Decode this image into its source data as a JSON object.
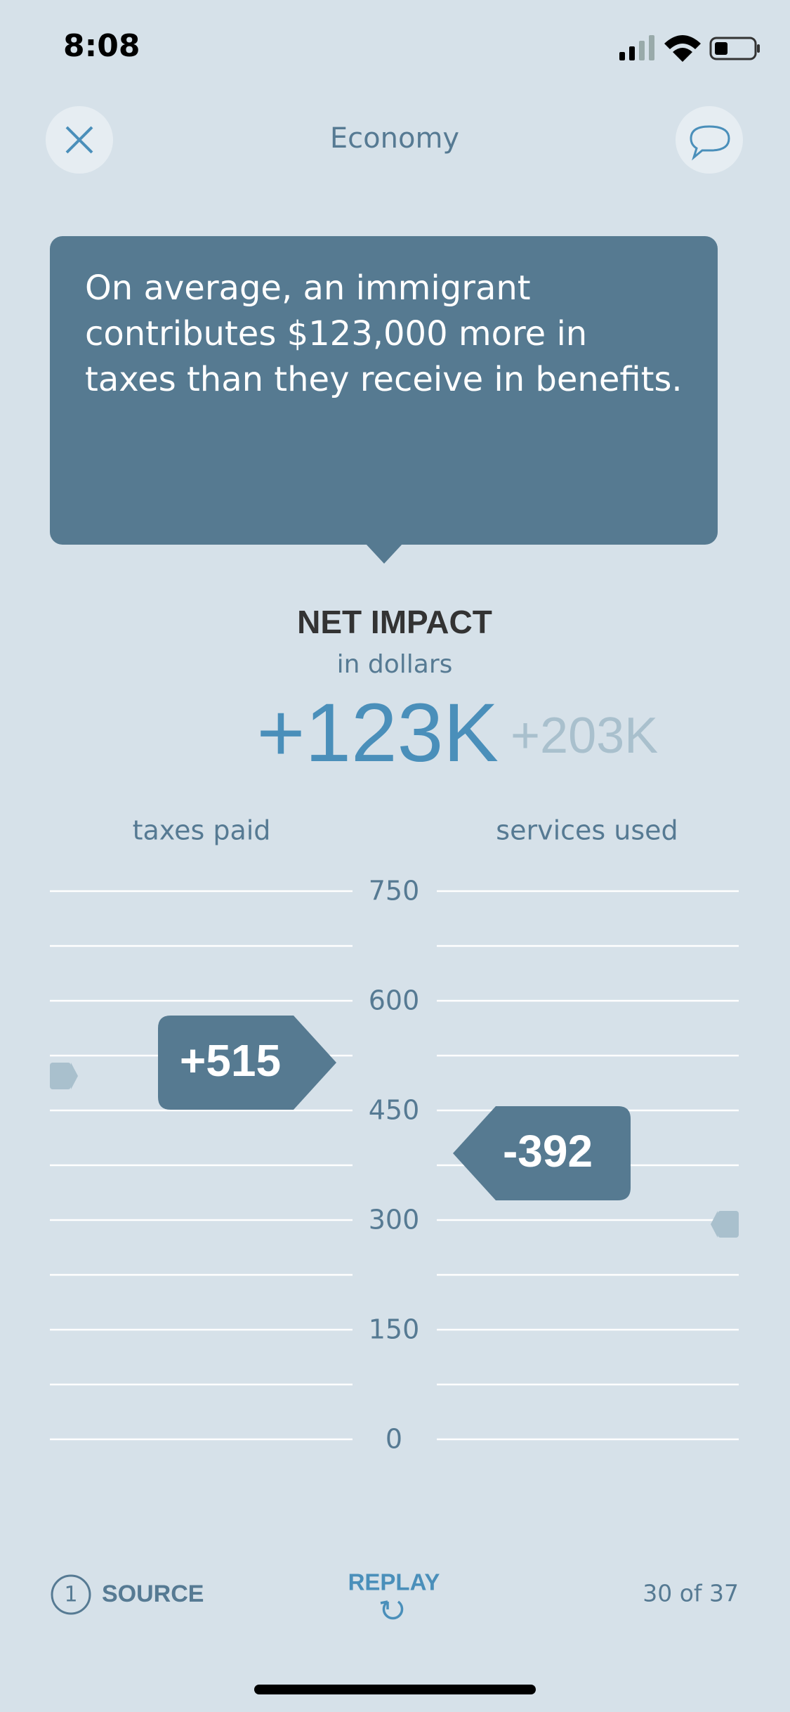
{
  "status": {
    "time": "8:08"
  },
  "header": {
    "title": "Economy"
  },
  "callout": {
    "lines": [
      "On average, an immigrant",
      "contributes $123,000 more in",
      "taxes than they receive in benefits."
    ]
  },
  "net_impact": {
    "title": "NET IMPACT",
    "subtitle": "in dollars",
    "value": "+123K",
    "comparison": "+203K"
  },
  "chart": {
    "left_label": "taxes paid",
    "right_label": "services used",
    "ylim": [
      0,
      750
    ],
    "yticks": [
      0,
      150,
      300,
      450,
      600,
      750
    ],
    "left_tag": "+515",
    "right_tag": "-392"
  },
  "footer": {
    "source_number": "1",
    "source": "SOURCE",
    "replay": "REPLAY",
    "page": "30 of 37"
  }
}
